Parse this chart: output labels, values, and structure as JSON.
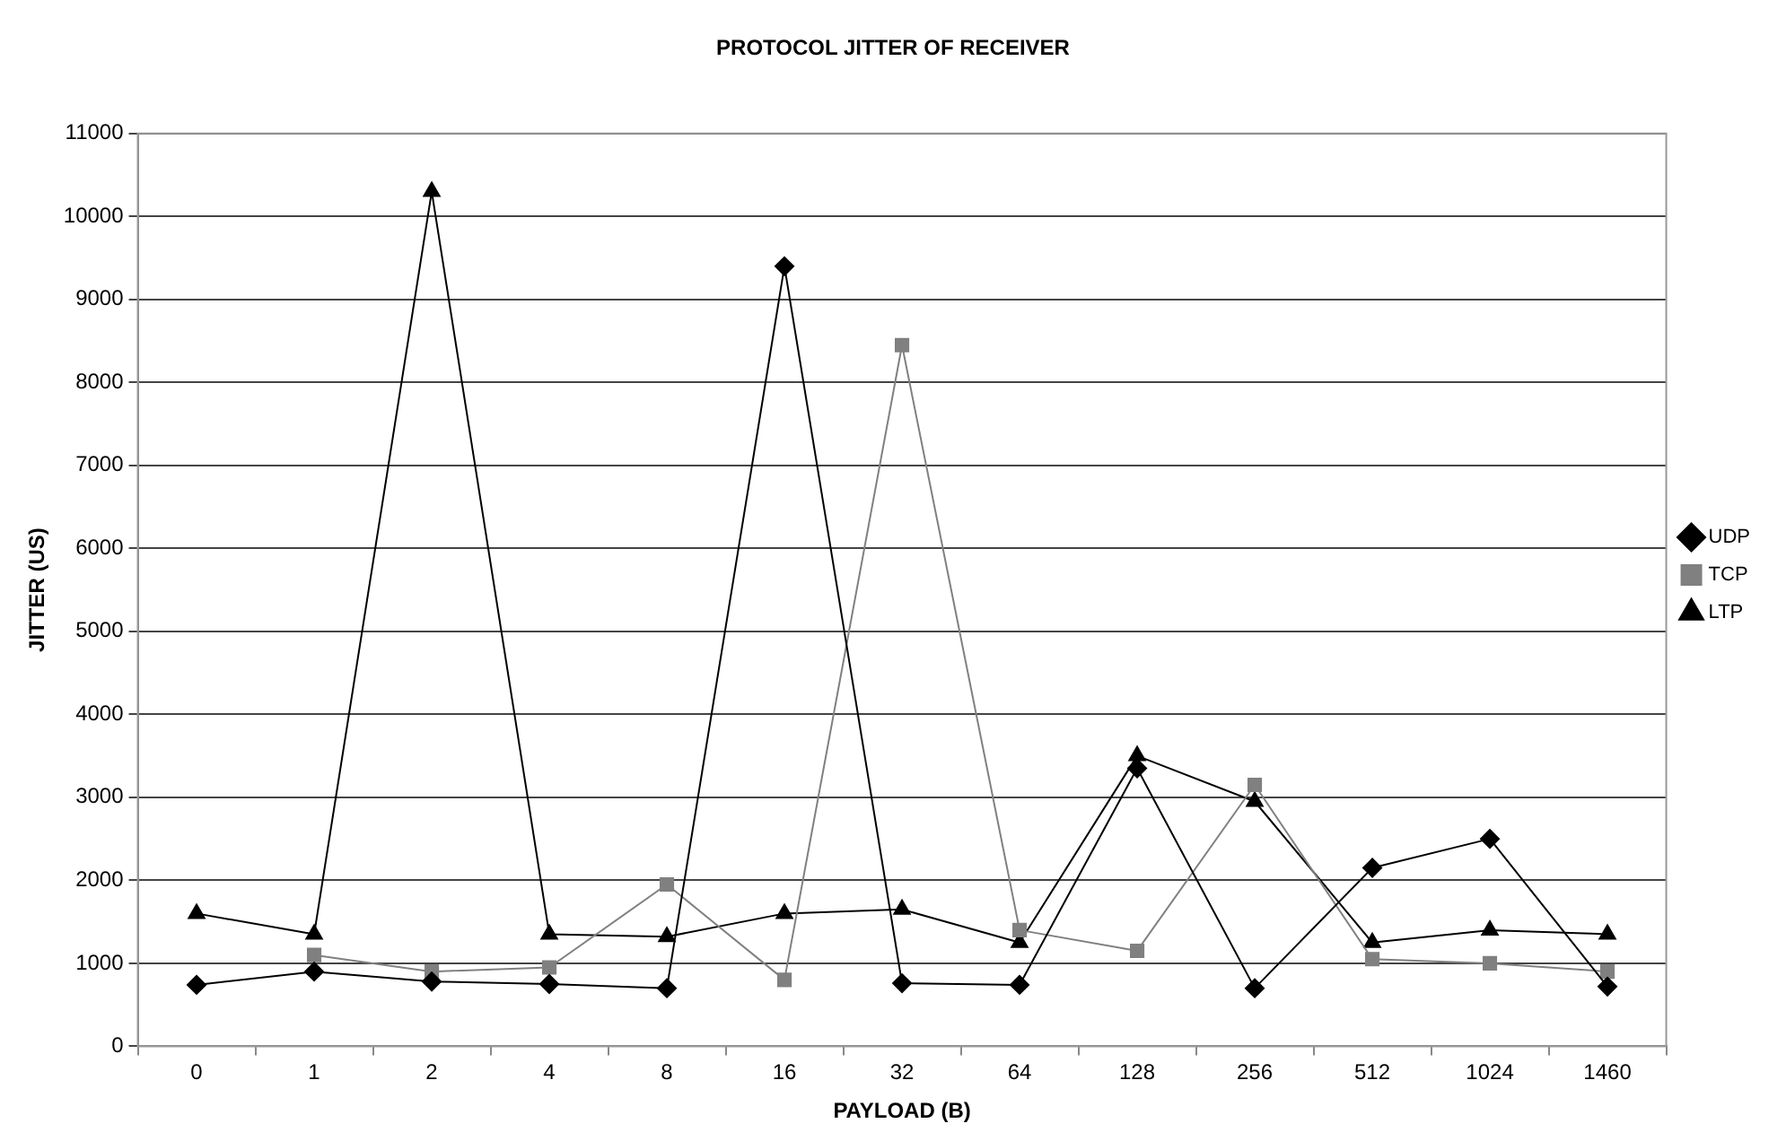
{
  "chart_data": {
    "type": "line",
    "title": "PROTOCOL JITTER OF RECEIVER",
    "xlabel": "PAYLOAD (B)",
    "ylabel": "JITTER (US)",
    "categories": [
      "0",
      "1",
      "2",
      "4",
      "8",
      "16",
      "32",
      "64",
      "128",
      "256",
      "512",
      "1024",
      "1460"
    ],
    "series": [
      {
        "name": "UDP",
        "color": "#000000",
        "marker": "diamond",
        "values": [
          740,
          900,
          780,
          750,
          700,
          9400,
          760,
          740,
          3350,
          700,
          2150,
          2500,
          720
        ]
      },
      {
        "name": "TCP",
        "color": "#808080",
        "marker": "square",
        "values": [
          null,
          1100,
          900,
          950,
          1950,
          800,
          8450,
          1400,
          1150,
          3150,
          1050,
          1000,
          900
        ]
      },
      {
        "name": "LTP",
        "color": "#000000",
        "marker": "triangle",
        "values": [
          1600,
          1350,
          10300,
          1350,
          1320,
          1600,
          1650,
          1250,
          3500,
          2950,
          1250,
          1400,
          1350
        ]
      }
    ],
    "ylim": [
      0,
      11000
    ],
    "yticks": [
      0,
      1000,
      2000,
      3000,
      4000,
      5000,
      6000,
      7000,
      8000,
      9000,
      10000,
      11000
    ],
    "grid": "y",
    "legend": "right"
  }
}
